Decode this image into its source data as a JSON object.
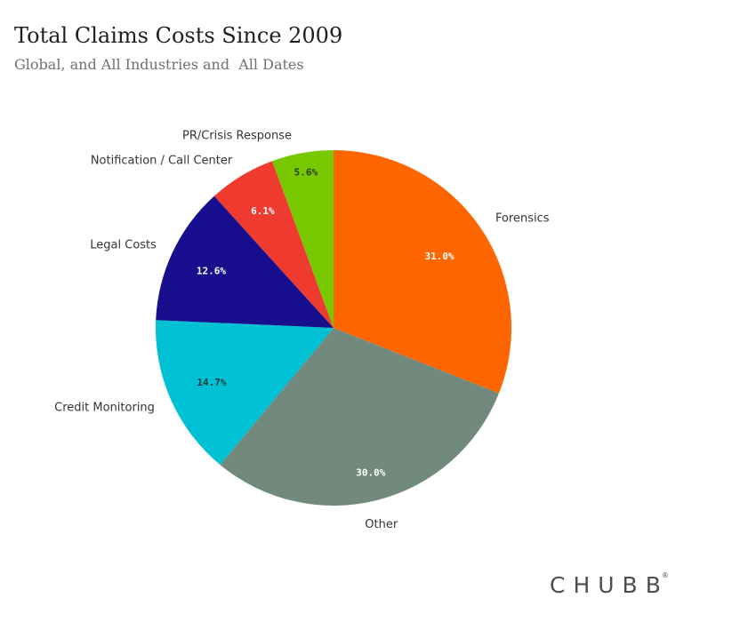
{
  "title": "Total Claims Costs Since 2009",
  "subtitle": "Global, and All Industries and  All Dates",
  "logo": {
    "text": "CHUBB",
    "mark": "®"
  },
  "chart_data": {
    "type": "pie",
    "slices": [
      {
        "label": "Forensics",
        "value": 31.0,
        "display": "31.0%",
        "color": "#ff6600",
        "pct_color": "#ffffff"
      },
      {
        "label": "Other",
        "value": 30.0,
        "display": "30.0%",
        "color": "#718a7d",
        "pct_color": "#ffffff"
      },
      {
        "label": "Credit Monitoring",
        "value": 14.7,
        "display": "14.7%",
        "color": "#00c0d4",
        "pct_color": "#1a3a3a"
      },
      {
        "label": "Legal Costs",
        "value": 12.6,
        "display": "12.6%",
        "color": "#170e8e",
        "pct_color": "#ffffff"
      },
      {
        "label": "Notification / Call Center",
        "value": 6.1,
        "display": "6.1%",
        "color": "#ef3a2f",
        "pct_color": "#ffffff"
      },
      {
        "label": "PR/Crisis Response",
        "value": 5.6,
        "display": "5.6%",
        "color": "#77c800",
        "pct_color": "#2a3a10"
      }
    ],
    "start": "12 o'clock",
    "direction": "clockwise",
    "legend": "none"
  }
}
